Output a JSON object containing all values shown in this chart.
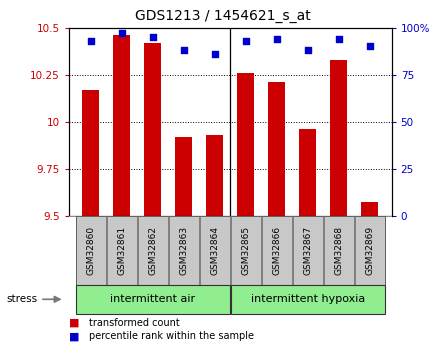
{
  "title": "GDS1213 / 1454621_s_at",
  "samples": [
    "GSM32860",
    "GSM32861",
    "GSM32862",
    "GSM32863",
    "GSM32864",
    "GSM32865",
    "GSM32866",
    "GSM32867",
    "GSM32868",
    "GSM32869"
  ],
  "transformed_count": [
    10.17,
    10.46,
    10.42,
    9.92,
    9.93,
    10.26,
    10.21,
    9.96,
    10.33,
    9.57
  ],
  "percentile_rank": [
    93,
    97,
    95,
    88,
    86,
    93,
    94,
    88,
    94,
    90
  ],
  "ylim_left": [
    9.5,
    10.5
  ],
  "ylim_right": [
    0,
    100
  ],
  "yticks_left": [
    9.5,
    9.75,
    10.0,
    10.25,
    10.5
  ],
  "yticks_right": [
    0,
    25,
    50,
    75,
    100
  ],
  "ytick_labels_left": [
    "9.5",
    "9.75",
    "10",
    "10.25",
    "10.5"
  ],
  "ytick_labels_right": [
    "0",
    "25",
    "50",
    "75",
    "100%"
  ],
  "bar_color": "#cc0000",
  "dot_color": "#0000cc",
  "bar_bottom": 9.5,
  "group1_label": "intermittent air",
  "group2_label": "intermittent hypoxia",
  "n_group1": 5,
  "n_group2": 5,
  "stress_label": "stress",
  "legend_bar_label": "transformed count",
  "legend_dot_label": "percentile rank within the sample",
  "group_bg_color": "#90ee90",
  "tick_label_bg": "#c8c8c8",
  "plot_bg": "#ffffff",
  "bar_width": 0.55,
  "sep_between_groups": 4.5,
  "figsize": [
    4.45,
    3.45
  ],
  "dpi": 100
}
